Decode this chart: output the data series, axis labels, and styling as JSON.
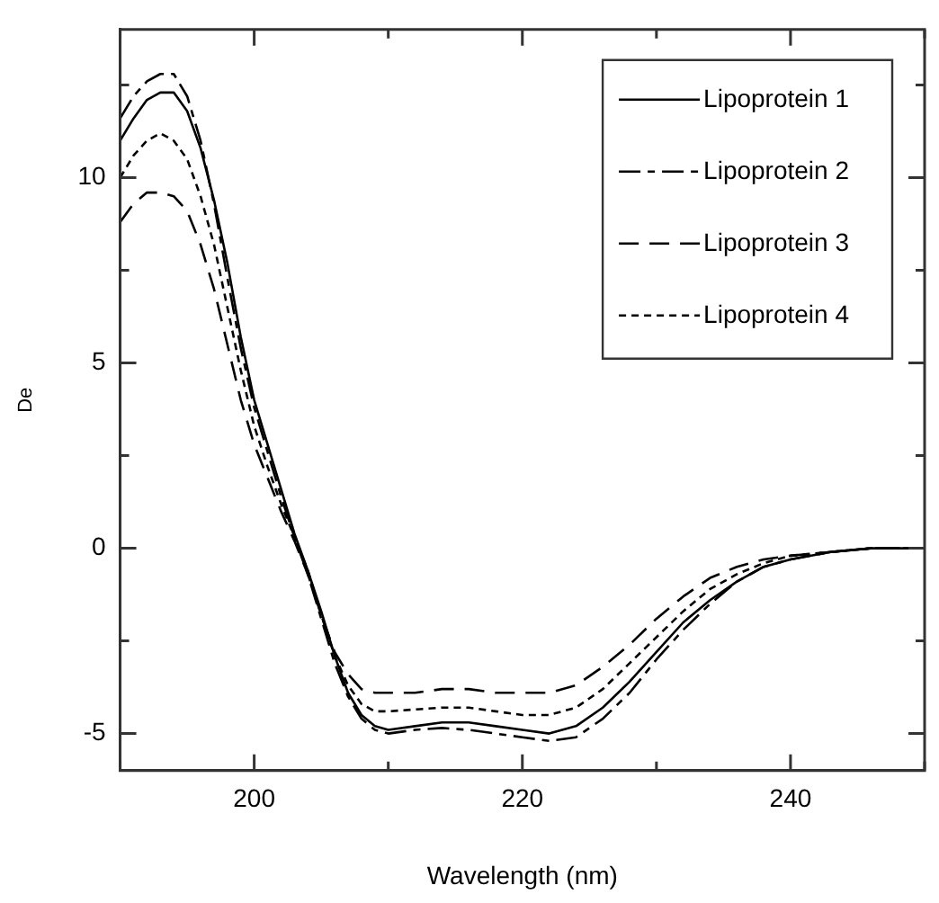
{
  "chart_data": {
    "type": "line",
    "xlabel": "Wavelength (nm)",
    "ylabel": "De",
    "xlim": [
      190,
      250
    ],
    "xticks": [
      {
        "value": 190,
        "label": null
      },
      200,
      {
        "value": 210,
        "label": null
      },
      220,
      {
        "value": 230,
        "label": null
      },
      240,
      {
        "value": 250,
        "label": null
      }
    ],
    "ylim": [
      -6,
      14
    ],
    "yticks": [
      -5,
      {
        "value": -2.5,
        "label": null
      },
      0,
      {
        "value": 2.5,
        "label": null
      },
      5,
      {
        "value": 7.5,
        "label": null
      },
      10,
      {
        "value": 12.5,
        "label": null
      }
    ],
    "grid": false,
    "legend": "top right",
    "marker": "none",
    "x": [
      190,
      191,
      192,
      193,
      194,
      195,
      196,
      197,
      198,
      199,
      200,
      201,
      202,
      203,
      204,
      205,
      206,
      207,
      208,
      209,
      210,
      212,
      214,
      216,
      218,
      220,
      222,
      224,
      226,
      228,
      230,
      232,
      234,
      236,
      238,
      240,
      243,
      246,
      250
    ],
    "series": [
      {
        "name": "Lipoprotein 1",
        "color": "#000000",
        "line_style": "solid",
        "values": [
          11.0,
          11.6,
          12.1,
          12.3,
          12.3,
          11.8,
          10.8,
          9.4,
          7.7,
          5.7,
          4.0,
          2.8,
          1.6,
          0.4,
          -0.6,
          -1.7,
          -2.9,
          -3.9,
          -4.5,
          -4.8,
          -4.9,
          -4.8,
          -4.7,
          -4.7,
          -4.8,
          -4.9,
          -5.0,
          -4.8,
          -4.3,
          -3.6,
          -2.8,
          -2.0,
          -1.4,
          -0.9,
          -0.5,
          -0.3,
          -0.1,
          0,
          0
        ]
      },
      {
        "name": "Lipoprotein 2",
        "color": "#000000",
        "line_style": "dashdot",
        "values": [
          11.6,
          12.2,
          12.6,
          12.8,
          12.8,
          12.2,
          11.0,
          9.3,
          7.3,
          5.4,
          3.8,
          2.6,
          1.4,
          0.3,
          -0.7,
          -1.9,
          -3.1,
          -4.0,
          -4.6,
          -4.9,
          -5.0,
          -4.9,
          -4.85,
          -4.9,
          -5.0,
          -5.1,
          -5.2,
          -5.1,
          -4.6,
          -3.9,
          -3.0,
          -2.2,
          -1.5,
          -0.9,
          -0.5,
          -0.3,
          -0.1,
          0,
          0
        ]
      },
      {
        "name": "Lipoprotein 3",
        "color": "#000000",
        "line_style": "dashed",
        "values": [
          8.8,
          9.3,
          9.6,
          9.6,
          9.5,
          9.1,
          8.2,
          7.0,
          5.5,
          4.0,
          2.8,
          1.9,
          1.0,
          0.2,
          -0.7,
          -1.8,
          -2.8,
          -3.4,
          -3.8,
          -3.9,
          -3.9,
          -3.9,
          -3.8,
          -3.8,
          -3.9,
          -3.9,
          -3.9,
          -3.7,
          -3.2,
          -2.6,
          -1.9,
          -1.3,
          -0.8,
          -0.5,
          -0.3,
          -0.2,
          -0.1,
          0,
          0
        ]
      },
      {
        "name": "Lipoprotein 4",
        "color": "#000000",
        "line_style": "dotted",
        "values": [
          10.0,
          10.6,
          11.0,
          11.2,
          11.0,
          10.5,
          9.5,
          8.2,
          6.5,
          4.8,
          3.3,
          2.2,
          1.2,
          0.3,
          -0.6,
          -1.8,
          -2.9,
          -3.7,
          -4.2,
          -4.4,
          -4.4,
          -4.35,
          -4.3,
          -4.3,
          -4.4,
          -4.5,
          -4.5,
          -4.3,
          -3.8,
          -3.1,
          -2.4,
          -1.7,
          -1.1,
          -0.7,
          -0.4,
          -0.2,
          -0.1,
          0,
          0
        ]
      }
    ]
  }
}
